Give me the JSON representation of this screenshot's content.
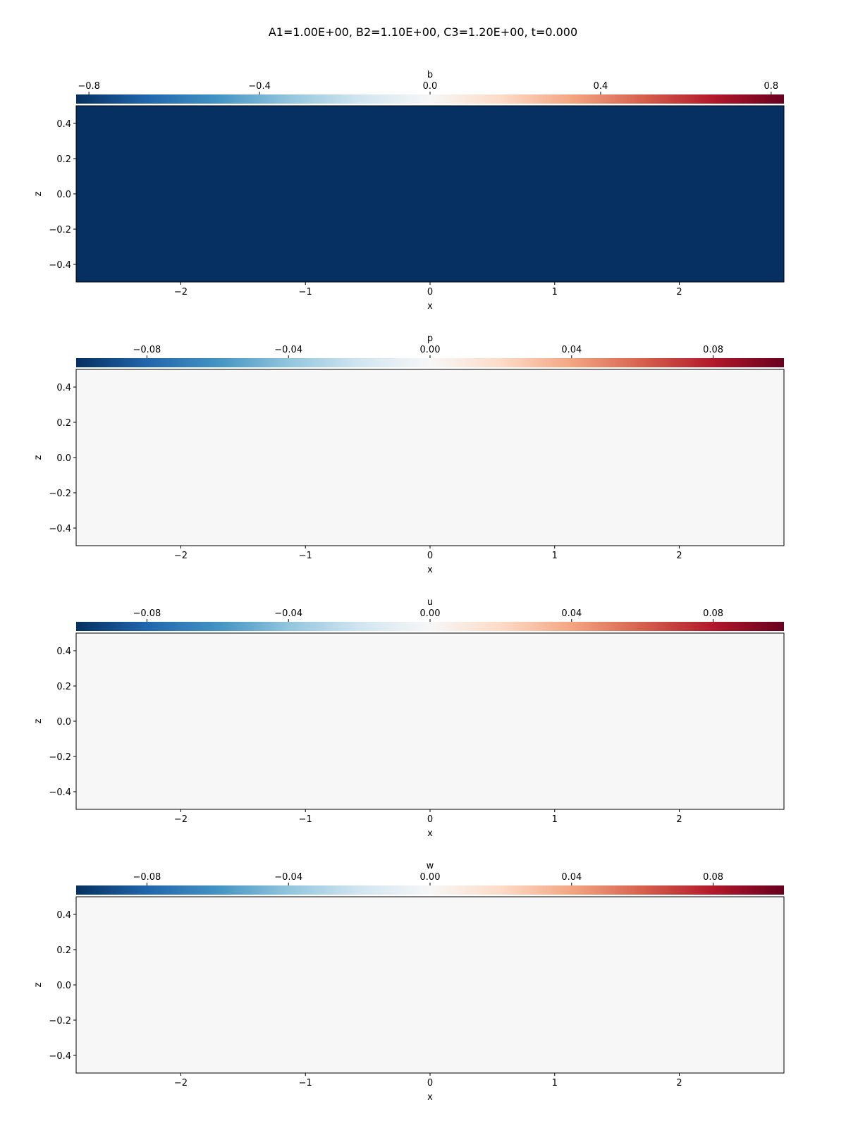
{
  "figure": {
    "suptitle": "A1=1.00E+00, B2=1.10E+00, C3=1.20E+00, t=0.000"
  },
  "chart_data": [
    {
      "type": "heatmap",
      "title": "b",
      "colorbar_label": "b",
      "colormap": "RdBu_r",
      "vmin": -0.83,
      "vmax": 0.83,
      "colorbar_ticks": [
        -0.8,
        -0.4,
        0.0,
        0.4,
        0.8
      ],
      "colorbar_tick_labels": [
        "−0.8",
        "−0.4",
        "0.0",
        "0.4",
        "0.8"
      ],
      "xlabel": "x",
      "ylabel": "z",
      "xlim": [
        -2.84,
        2.84
      ],
      "ylim": [
        -0.5,
        0.5
      ],
      "x_ticks": [
        -2,
        -1,
        0,
        1,
        2
      ],
      "x_tick_labels": [
        "−2",
        "−1",
        "0",
        "1",
        "2"
      ],
      "y_ticks": [
        0.4,
        0.2,
        0.0,
        -0.2,
        -0.4
      ],
      "y_tick_labels": [
        "0.4",
        "0.2",
        "0.0",
        "−0.2",
        "−0.4"
      ],
      "field": {
        "description_values_by_z": [
          [
            0.5,
            -0.98
          ],
          [
            -0.5,
            -0.92
          ]
        ]
      }
    },
    {
      "type": "heatmap",
      "title": "p",
      "colorbar_label": "p",
      "colormap": "RdBu_r",
      "vmin": -0.1,
      "vmax": 0.1,
      "colorbar_ticks": [
        -0.08,
        -0.04,
        0.0,
        0.04,
        0.08
      ],
      "colorbar_tick_labels": [
        "−0.08",
        "−0.04",
        "0.00",
        "0.04",
        "0.08"
      ],
      "xlabel": "x",
      "ylabel": "z",
      "xlim": [
        -2.84,
        2.84
      ],
      "ylim": [
        -0.5,
        0.5
      ],
      "x_ticks": [
        -2,
        -1,
        0,
        1,
        2
      ],
      "x_tick_labels": [
        "−2",
        "−1",
        "0",
        "1",
        "2"
      ],
      "y_ticks": [
        0.4,
        0.2,
        0.0,
        -0.2,
        -0.4
      ],
      "y_tick_labels": [
        "0.4",
        "0.2",
        "0.0",
        "−0.2",
        "−0.4"
      ],
      "field": {
        "description_values_by_z": [
          [
            0.5,
            0.0
          ],
          [
            -0.5,
            0.0
          ]
        ]
      }
    },
    {
      "type": "heatmap",
      "title": "u",
      "colorbar_label": "u",
      "colormap": "RdBu_r",
      "vmin": -0.1,
      "vmax": 0.1,
      "colorbar_ticks": [
        -0.08,
        -0.04,
        0.0,
        0.04,
        0.08
      ],
      "colorbar_tick_labels": [
        "−0.08",
        "−0.04",
        "0.00",
        "0.04",
        "0.08"
      ],
      "xlabel": "x",
      "ylabel": "z",
      "xlim": [
        -2.84,
        2.84
      ],
      "ylim": [
        -0.5,
        0.5
      ],
      "x_ticks": [
        -2,
        -1,
        0,
        1,
        2
      ],
      "x_tick_labels": [
        "−2",
        "−1",
        "0",
        "1",
        "2"
      ],
      "y_ticks": [
        0.4,
        0.2,
        0.0,
        -0.2,
        -0.4
      ],
      "y_tick_labels": [
        "0.4",
        "0.2",
        "0.0",
        "−0.2",
        "−0.4"
      ],
      "field": {
        "description_values_by_z": [
          [
            0.5,
            0.0
          ],
          [
            -0.5,
            0.0
          ]
        ]
      }
    },
    {
      "type": "heatmap",
      "title": "w",
      "colorbar_label": "w",
      "colormap": "RdBu_r",
      "vmin": -0.1,
      "vmax": 0.1,
      "colorbar_ticks": [
        -0.08,
        -0.04,
        0.0,
        0.04,
        0.08
      ],
      "colorbar_tick_labels": [
        "−0.08",
        "−0.04",
        "0.00",
        "0.04",
        "0.08"
      ],
      "xlabel": "x",
      "ylabel": "z",
      "xlim": [
        -2.84,
        2.84
      ],
      "ylim": [
        -0.5,
        0.5
      ],
      "x_ticks": [
        -2,
        -1,
        0,
        1,
        2
      ],
      "x_tick_labels": [
        "−2",
        "−1",
        "0",
        "1",
        "2"
      ],
      "y_ticks": [
        0.4,
        0.2,
        0.0,
        -0.2,
        -0.4
      ],
      "y_tick_labels": [
        "0.4",
        "0.2",
        "0.0",
        "−0.2",
        "−0.4"
      ],
      "field": {
        "description_values_by_z": [
          [
            0.5,
            0.0
          ],
          [
            -0.5,
            0.0
          ]
        ]
      }
    }
  ]
}
